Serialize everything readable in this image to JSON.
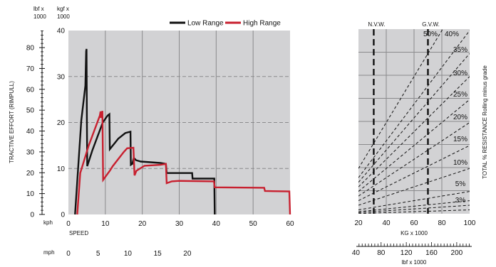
{
  "chart_data": [
    {
      "type": "line",
      "ylabel": "TRACTIVE EFFORT (RIMPULL)",
      "y_units": {
        "lbf": "lbf x 1000",
        "kgf": "kgf x 1000"
      },
      "y_ticks_lbf": [
        "0",
        "10",
        "20",
        "30",
        "40",
        "50",
        "60",
        "70",
        "80"
      ],
      "y_ticks_kgf": [
        "0",
        "10",
        "20",
        "30",
        "40"
      ],
      "ylim_kgf": [
        0,
        40
      ],
      "x_unit_kph": "kph",
      "x_unit_mph": "mph",
      "xlabel": "SPEED",
      "x_ticks_kph": [
        "0",
        "10",
        "20",
        "30",
        "40",
        "50",
        "60"
      ],
      "x_ticks_mph": [
        "0",
        "5",
        "10",
        "15",
        "20"
      ],
      "xlim_kph": [
        0,
        60
      ],
      "grid": true,
      "legend_position": "top",
      "series": [
        {
          "name": "Low Range",
          "color": "#111111",
          "points": [
            [
              1.8,
              0
            ],
            [
              3.5,
              20.5
            ],
            [
              4.6,
              28
            ],
            [
              4.8,
              35.5
            ],
            [
              4.9,
              36
            ],
            [
              5,
              21
            ],
            [
              5.1,
              10.5
            ],
            [
              6.5,
              14
            ],
            [
              9.3,
              20
            ],
            [
              10.6,
              21.5
            ],
            [
              11.1,
              21.8
            ],
            [
              11.2,
              14.2
            ],
            [
              13.5,
              16.5
            ],
            [
              15.4,
              17.7
            ],
            [
              16.8,
              18
            ],
            [
              16.9,
              10.8
            ],
            [
              17.3,
              11
            ],
            [
              17.7,
              12.3
            ],
            [
              18.3,
              11.8
            ],
            [
              19.6,
              11.5
            ],
            [
              24.9,
              11.2
            ],
            [
              26.4,
              11
            ],
            [
              26.6,
              9
            ],
            [
              33.5,
              9
            ],
            [
              33.6,
              7.8
            ],
            [
              39.5,
              7.8
            ],
            [
              39.6,
              0
            ]
          ]
        },
        {
          "name": "High Range",
          "color": "#c8202f",
          "points": [
            [
              2.4,
              0
            ],
            [
              3.2,
              9
            ],
            [
              5.5,
              15
            ],
            [
              8.5,
              21.5
            ],
            [
              8.7,
              22.4
            ],
            [
              8.8,
              21
            ],
            [
              9.2,
              22.5
            ],
            [
              9.4,
              7.5
            ],
            [
              11.2,
              9.5
            ],
            [
              12,
              10.5
            ],
            [
              14.9,
              13.5
            ],
            [
              15.9,
              14.4
            ],
            [
              17.6,
              14.5
            ],
            [
              17.9,
              8.5
            ],
            [
              18.4,
              9.5
            ],
            [
              20.6,
              10.6
            ],
            [
              24.9,
              10.8
            ],
            [
              26.4,
              11
            ],
            [
              26.6,
              6.8
            ],
            [
              28,
              7.2
            ],
            [
              29.9,
              7.3
            ],
            [
              39.4,
              7.2
            ],
            [
              39.6,
              5.9
            ],
            [
              53,
              5.8
            ],
            [
              53.2,
              5.1
            ],
            [
              59.8,
              5
            ],
            [
              60,
              0
            ]
          ]
        }
      ]
    },
    {
      "type": "line",
      "ylabel": "TOTAL % RESISTANCE Rolling minus grade",
      "xlabel_kg": "KG x 1000",
      "xlabel_lbf": "lbf x 1000",
      "x_ticks_kg": [
        "20",
        "40",
        "60",
        "80",
        "100"
      ],
      "x_ticks_lbf": [
        "40",
        "80",
        "120",
        "160",
        "200"
      ],
      "xlim_kg": [
        20,
        100
      ],
      "grid": true,
      "markers": [
        {
          "label": "N.V.W.",
          "kg": 31
        },
        {
          "label": "G.V.W.",
          "kg": 70
        }
      ],
      "grade_lines_percent": [
        {
          "pct": 50,
          "label": "50%"
        },
        {
          "pct": 40,
          "label": "40%"
        },
        {
          "pct": 35,
          "label": "35%"
        },
        {
          "pct": 30,
          "label": "30%"
        },
        {
          "pct": 25,
          "label": "25%"
        },
        {
          "pct": 20,
          "label": "20%"
        },
        {
          "pct": 15,
          "label": "15%"
        },
        {
          "pct": 10,
          "label": "10%"
        },
        {
          "pct": 5,
          "label": "5%"
        },
        {
          "pct": 3,
          "label": "3%"
        },
        {
          "pct": 2,
          "label": ""
        },
        {
          "pct": 1,
          "label": ""
        }
      ]
    }
  ]
}
